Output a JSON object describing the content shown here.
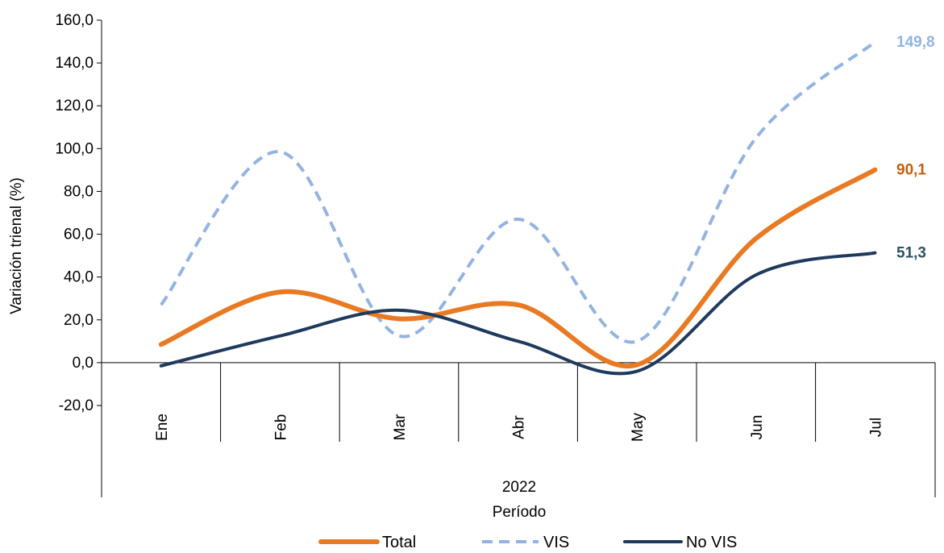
{
  "chart_data": {
    "type": "line",
    "title": "",
    "xlabel": "Período",
    "ylabel": "Variación trienal (%)",
    "group_label": "2022",
    "categories": [
      "Ene",
      "Feb",
      "Mar",
      "Abr",
      "May",
      "Jun",
      "Jul"
    ],
    "ylim": [
      -20,
      160
    ],
    "yticks": [
      "-20,0",
      "0,0",
      "20,0",
      "40,0",
      "60,0",
      "80,0",
      "100,0",
      "120,0",
      "140,0",
      "160,0"
    ],
    "ytick_values": [
      -20,
      0,
      20,
      40,
      60,
      80,
      100,
      120,
      140,
      160
    ],
    "grid": false,
    "legend_position": "bottom",
    "series": [
      {
        "name": "Total",
        "values": [
          8.5,
          33.0,
          20.5,
          27.0,
          -1.0,
          58.0,
          90.1
        ],
        "color": "#E97A24",
        "style": "solid",
        "end_label": "90,1"
      },
      {
        "name": "VIS",
        "values": [
          27.0,
          98.5,
          12.5,
          67.0,
          10.0,
          105.0,
          149.8
        ],
        "color": "#93B3E0",
        "style": "dashed",
        "end_label": "149,8"
      },
      {
        "name": "No VIS",
        "values": [
          -1.5,
          12.5,
          24.5,
          10.0,
          -4.0,
          41.0,
          51.3
        ],
        "color": "#1F3A5C",
        "style": "solid",
        "end_label": "51,3"
      }
    ],
    "end_label_colors": [
      "#C25E12",
      "#93B3E0",
      "#2E5266"
    ]
  }
}
